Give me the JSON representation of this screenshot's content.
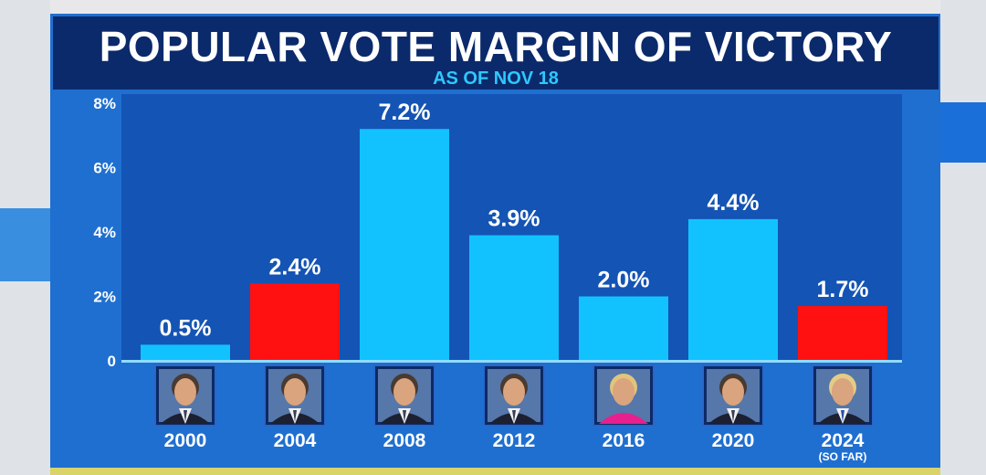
{
  "header": {
    "title": "POPULAR VOTE MARGIN OF VICTORY",
    "subtitle": "AS OF NOV 18"
  },
  "colors": {
    "democrat": "#12c2ff",
    "republican": "#ff1111",
    "panel": "#1f6fd0",
    "plot_background": "#1454b4",
    "title_background": "#0b2a6b",
    "subtitle": "#2ec8ff"
  },
  "chart_data": {
    "type": "bar",
    "title": "POPULAR VOTE MARGIN OF VICTORY",
    "subtitle": "AS OF NOV 18",
    "categories": [
      "2000",
      "2004",
      "2008",
      "2012",
      "2016",
      "2020",
      "2024"
    ],
    "category_notes": [
      "",
      "",
      "",
      "",
      "",
      "",
      "(SO FAR)"
    ],
    "values": [
      0.5,
      2.4,
      7.2,
      3.9,
      2.0,
      4.4,
      1.7
    ],
    "data_labels": [
      "0.5%",
      "2.4%",
      "7.2%",
      "3.9%",
      "2.0%",
      "4.4%",
      "1.7%"
    ],
    "bar_party": [
      "democrat",
      "republican",
      "democrat",
      "democrat",
      "democrat",
      "democrat",
      "republican"
    ],
    "candidate_icons": [
      "candidate-gore-portrait",
      "candidate-bush-portrait",
      "candidate-obama-portrait",
      "candidate-obama-portrait",
      "candidate-clinton-portrait",
      "candidate-biden-portrait",
      "candidate-trump-portrait"
    ],
    "y_ticks": [
      "0",
      "2%",
      "4%",
      "6%",
      "8%"
    ],
    "y_tick_values": [
      0,
      2,
      4,
      6,
      8
    ],
    "ylim": [
      0,
      8
    ],
    "xlabel": "",
    "ylabel": "",
    "grid": false,
    "legend": "none"
  }
}
